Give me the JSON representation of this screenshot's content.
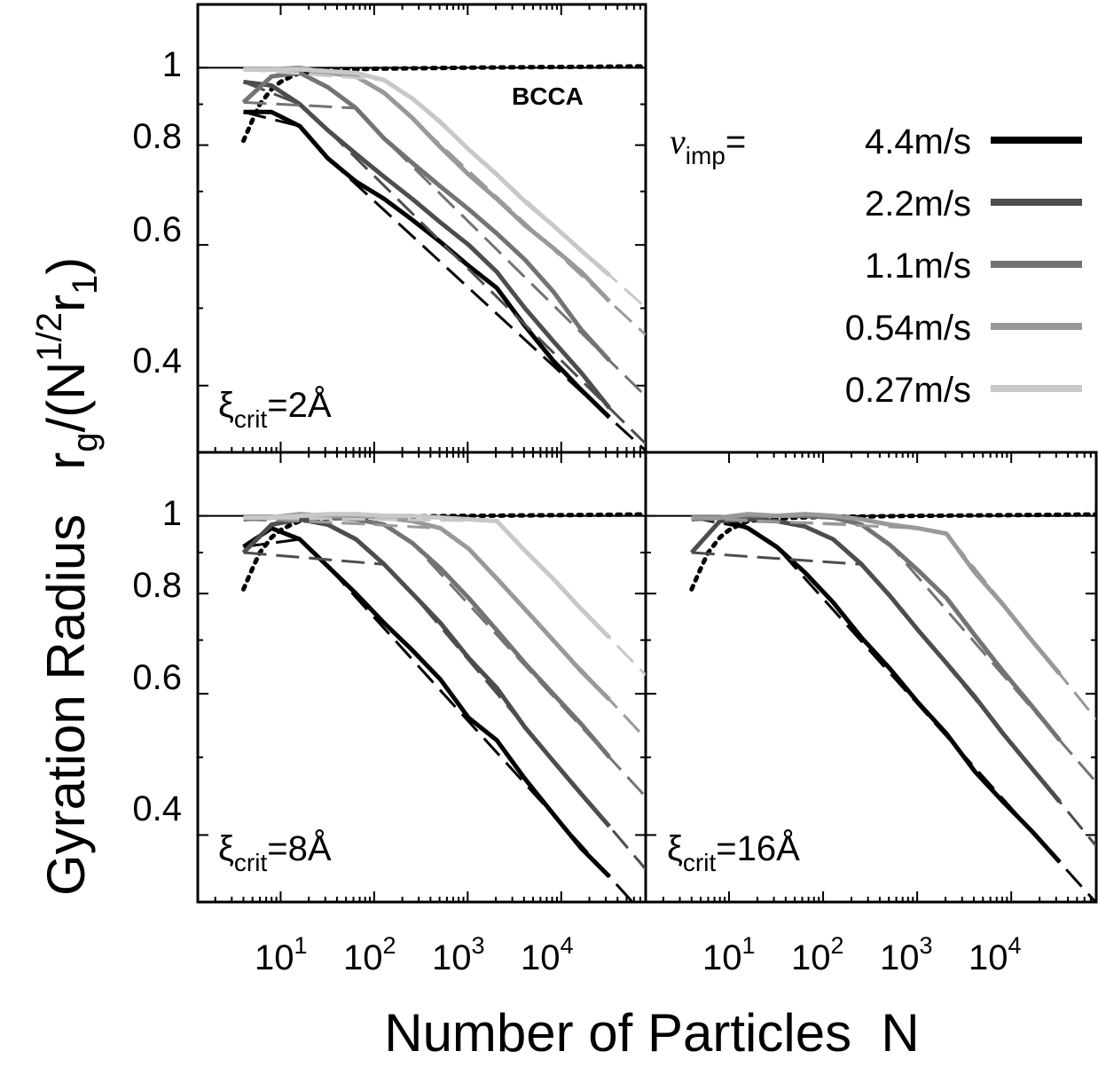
{
  "figure": {
    "ylabel": {
      "main": "Gyration Radius",
      "r": "r",
      "g": "g",
      "open": "/(N",
      "exp": "1/2",
      "r1": "r",
      "one": "1",
      "close": ")"
    },
    "xlabel": "Number of Particles  N",
    "y_ticks": [
      "1",
      "0.8",
      "0.6",
      "0.4"
    ],
    "x_ticks": [
      {
        "base": "10",
        "exp": "1"
      },
      {
        "base": "10",
        "exp": "2"
      },
      {
        "base": "10",
        "exp": "3"
      },
      {
        "base": "10",
        "exp": "4"
      }
    ],
    "bcca_label": "BCCA",
    "legend": {
      "symbol": "v",
      "subscript": "imp",
      "equals": "=",
      "entries": [
        {
          "label": "4.4m/s",
          "color": "#000000"
        },
        {
          "label": "2.2m/s",
          "color": "#4d4d4d"
        },
        {
          "label": "1.1m/s",
          "color": "#737373"
        },
        {
          "label": "0.54m/s",
          "color": "#999999"
        },
        {
          "label": "0.27m/s",
          "color": "#c8c8c8"
        }
      ]
    },
    "panels": [
      {
        "xi": "ξ",
        "sub": "crit",
        "value": "=2Å"
      },
      {
        "xi": "ξ",
        "sub": "crit",
        "value": "=8Å"
      },
      {
        "xi": "ξ",
        "sub": "crit",
        "value": "=16Å"
      }
    ]
  },
  "chart_data": [
    {
      "type": "line",
      "panel": "top-left",
      "x_scale": "log",
      "y_scale": "log",
      "xlim": [
        1.3,
        80000
      ],
      "ylim": [
        0.33,
        1.2
      ],
      "xlabel": "Number of Particles  N",
      "ylabel": "Gyration Radius  rg/(N^1/2 r1)",
      "annotation": "ξcrit=2Å",
      "series": [
        {
          "name": "4.4m/s",
          "color": "#000000",
          "x": [
            4,
            8,
            16,
            32,
            64,
            128,
            256,
            512,
            1024,
            2048,
            4096,
            8192,
            16384,
            32768
          ],
          "y": [
            0.88,
            0.88,
            0.845,
            0.77,
            0.72,
            0.685,
            0.645,
            0.605,
            0.565,
            0.53,
            0.475,
            0.43,
            0.395,
            0.365
          ]
        },
        {
          "name": "2.2m/s",
          "color": "#4d4d4d",
          "x": [
            4,
            8,
            16,
            32,
            64,
            128,
            256,
            512,
            1024,
            2048,
            4096,
            8192,
            16384,
            32768
          ],
          "y": [
            0.96,
            0.95,
            0.9,
            0.835,
            0.78,
            0.73,
            0.685,
            0.64,
            0.6,
            0.555,
            0.5,
            0.455,
            0.415,
            0.375
          ]
        },
        {
          "name": "1.1m/s",
          "color": "#737373",
          "x": [
            4,
            8,
            16,
            32,
            64,
            128,
            256,
            512,
            1024,
            2048,
            4096,
            8192,
            16384,
            32768
          ],
          "y": [
            0.905,
            0.975,
            0.985,
            0.945,
            0.89,
            0.815,
            0.76,
            0.71,
            0.665,
            0.62,
            0.575,
            0.525,
            0.47,
            0.43
          ]
        },
        {
          "name": "0.54m/s",
          "color": "#999999",
          "x": [
            4,
            8,
            16,
            32,
            64,
            128,
            256,
            512,
            1024,
            2048,
            4096,
            8192,
            16384,
            32768
          ],
          "y": [
            0.995,
            0.995,
            1.0,
            0.985,
            0.975,
            0.93,
            0.865,
            0.795,
            0.735,
            0.685,
            0.635,
            0.595,
            0.555,
            0.51
          ]
        },
        {
          "name": "0.27m/s",
          "color": "#c8c8c8",
          "x": [
            4,
            8,
            16,
            32,
            64,
            128,
            256,
            512,
            1024,
            2048,
            4096,
            8192,
            16384,
            32768
          ],
          "y": [
            0.995,
            0.995,
            0.995,
            0.99,
            0.985,
            0.965,
            0.915,
            0.855,
            0.79,
            0.735,
            0.68,
            0.635,
            0.59,
            0.55
          ]
        }
      ]
    },
    {
      "type": "line",
      "panel": "bottom-left",
      "x_scale": "log",
      "y_scale": "log",
      "xlim": [
        1.3,
        80000
      ],
      "ylim": [
        0.33,
        1.2
      ],
      "annotation": "ξcrit=8Å",
      "series": [
        {
          "name": "4.4m/s",
          "color": "#000000",
          "x": [
            4,
            8,
            16,
            32,
            64,
            128,
            256,
            512,
            1024,
            2048,
            4096,
            8192,
            16384,
            32768
          ],
          "y": [
            0.915,
            0.965,
            0.935,
            0.865,
            0.8,
            0.735,
            0.68,
            0.625,
            0.56,
            0.525,
            0.47,
            0.425,
            0.385,
            0.355
          ]
        },
        {
          "name": "2.2m/s",
          "color": "#4d4d4d",
          "x": [
            4,
            8,
            16,
            32,
            64,
            128,
            256,
            512,
            1024,
            2048,
            4096,
            8192,
            16384,
            32768
          ],
          "y": [
            0.9,
            0.975,
            0.99,
            0.975,
            0.935,
            0.87,
            0.8,
            0.735,
            0.665,
            0.61,
            0.545,
            0.495,
            0.45,
            0.41
          ]
        },
        {
          "name": "1.1m/s",
          "color": "#737373",
          "x": [
            4,
            8,
            16,
            32,
            64,
            128,
            256,
            512,
            1024,
            2048,
            4096,
            8192,
            16384,
            32768
          ],
          "y": [
            0.99,
            0.995,
            1.0,
            0.995,
            0.99,
            0.975,
            0.925,
            0.86,
            0.79,
            0.72,
            0.655,
            0.6,
            0.55,
            0.5
          ]
        },
        {
          "name": "0.54m/s",
          "color": "#999999",
          "x": [
            4,
            8,
            16,
            32,
            64,
            128,
            256,
            512,
            1024,
            2048,
            4096,
            8192,
            16384,
            32768
          ],
          "y": [
            0.995,
            0.995,
            1.005,
            1.0,
            1.0,
            0.995,
            0.985,
            0.965,
            0.91,
            0.835,
            0.765,
            0.7,
            0.64,
            0.59
          ]
        },
        {
          "name": "0.27m/s",
          "color": "#c8c8c8",
          "x": [
            4,
            8,
            16,
            32,
            64,
            128,
            256,
            512,
            1024,
            2048,
            4096,
            8192,
            16384,
            32768
          ],
          "y": [
            0.995,
            0.995,
            1.0,
            1.005,
            1.005,
            1.0,
            1.0,
            0.995,
            0.99,
            0.985,
            0.905,
            0.835,
            0.765,
            0.705
          ]
        }
      ]
    },
    {
      "type": "line",
      "panel": "bottom-right",
      "x_scale": "log",
      "y_scale": "log",
      "xlim": [
        1.3,
        80000
      ],
      "ylim": [
        0.33,
        1.2
      ],
      "annotation": "ξcrit=16Å",
      "series": [
        {
          "name": "4.4m/s",
          "color": "#000000",
          "x": [
            4,
            8,
            16,
            32,
            64,
            128,
            256,
            512,
            1024,
            2048,
            4096,
            8192,
            16384,
            32768
          ],
          "y": [
            0.995,
            0.995,
            0.965,
            0.915,
            0.85,
            0.78,
            0.705,
            0.645,
            0.585,
            0.535,
            0.48,
            0.44,
            0.405,
            0.37
          ]
        },
        {
          "name": "2.2m/s",
          "color": "#4d4d4d",
          "x": [
            4,
            8,
            16,
            32,
            64,
            128,
            256,
            512,
            1024,
            2048,
            4096,
            8192,
            16384,
            32768
          ],
          "y": [
            0.9,
            0.985,
            0.99,
            0.985,
            0.97,
            0.935,
            0.87,
            0.795,
            0.72,
            0.655,
            0.595,
            0.535,
            0.485,
            0.44
          ]
        },
        {
          "name": "1.1m/s",
          "color": "#737373",
          "x": [
            4,
            8,
            16,
            32,
            64,
            128,
            256,
            512,
            1024,
            2048,
            4096,
            8192,
            16384,
            32768
          ],
          "y": [
            0.99,
            0.995,
            1.0,
            1.0,
            1.0,
            0.995,
            0.975,
            0.92,
            0.855,
            0.79,
            0.71,
            0.64,
            0.58,
            0.525
          ]
        },
        {
          "name": "0.54m/s",
          "color": "#999999",
          "x": [
            4,
            8,
            16,
            32,
            64,
            128,
            256,
            512,
            1024,
            2048,
            4096,
            8192,
            16384,
            32768
          ],
          "y": [
            0.995,
            0.995,
            1.005,
            1.0,
            1.005,
            1.0,
            0.99,
            0.975,
            0.965,
            0.95,
            0.85,
            0.775,
            0.7,
            0.635
          ]
        }
      ]
    }
  ]
}
